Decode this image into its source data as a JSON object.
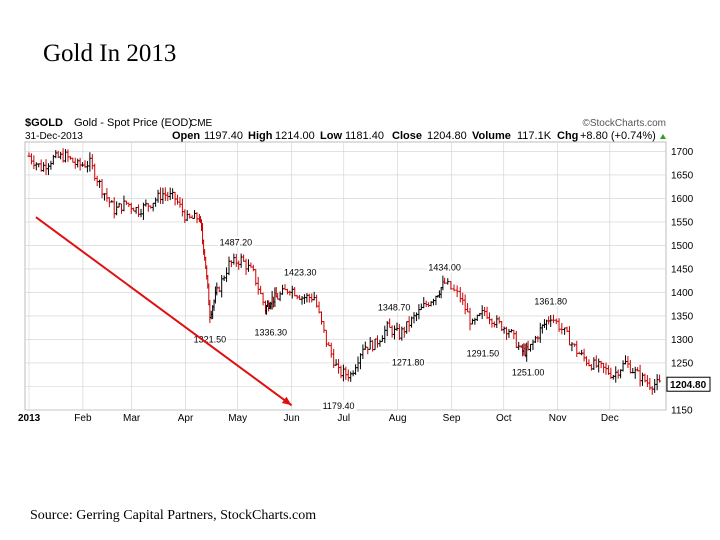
{
  "slide": {
    "title": "Gold In 2013",
    "source": "Source: Gerring Capital Partners, StockCharts.com"
  },
  "chart_header": {
    "symbol": "$GOLD",
    "description": "Gold - Spot Price (EOD)",
    "exchange": "CME",
    "date": "31-Dec-2013",
    "brand": "©StockCharts.com",
    "open_label": "Open",
    "open": "1197.40",
    "high_label": "High",
    "high": "1214.00",
    "low_label": "Low",
    "low": "1181.40",
    "close_label": "Close",
    "close": "1204.80",
    "volume_label": "Volume",
    "volume": "117.1K",
    "chg_label": "Chg",
    "chg": "+8.80 (+0.74%)"
  },
  "colors": {
    "up": "#000000",
    "down": "#cc0000",
    "arrow": "#e01010",
    "grid": "#d0d0d0"
  },
  "chart_data": {
    "type": "line",
    "title": "",
    "xlabel": "",
    "ylabel": "",
    "ylim": [
      1150,
      1720
    ],
    "grid": true,
    "y_ticks": [
      1150,
      1200,
      1250,
      1300,
      1350,
      1400,
      1450,
      1500,
      1550,
      1600,
      1650,
      1700
    ],
    "x_tick_labels": [
      "2013",
      "Feb",
      "Mar",
      "Apr",
      "May",
      "Jun",
      "Jul",
      "Aug",
      "Sep",
      "Oct",
      "Nov",
      "Dec"
    ],
    "last_price_tag": "1204.80",
    "series": [
      {
        "x": [
          "2013-01-01",
          "2013-01-08",
          "2013-01-15",
          "2013-01-22",
          "2013-01-29",
          "2013-02-05",
          "2013-02-12",
          "2013-02-19",
          "2013-02-26",
          "2013-03-05",
          "2013-03-12",
          "2013-03-19",
          "2013-03-26",
          "2013-04-02",
          "2013-04-09",
          "2013-04-12",
          "2013-04-15",
          "2013-04-19",
          "2013-04-26",
          "2013-05-03",
          "2013-05-10",
          "2013-05-17",
          "2013-05-20",
          "2013-05-24",
          "2013-05-31",
          "2013-06-07",
          "2013-06-14",
          "2013-06-21",
          "2013-06-28",
          "2013-07-05",
          "2013-07-12",
          "2013-07-19",
          "2013-07-26",
          "2013-08-02",
          "2013-08-09",
          "2013-08-16",
          "2013-08-23",
          "2013-08-28",
          "2013-09-06",
          "2013-09-13",
          "2013-09-20",
          "2013-09-27",
          "2013-10-04",
          "2013-10-11",
          "2013-10-15",
          "2013-10-22",
          "2013-10-28",
          "2013-11-05",
          "2013-11-12",
          "2013-11-19",
          "2013-11-26",
          "2013-12-03",
          "2013-12-10",
          "2013-12-17",
          "2013-12-24",
          "2013-12-31"
        ],
        "values": [
          1690,
          1665,
          1685,
          1690,
          1670,
          1675,
          1620,
          1575,
          1590,
          1575,
          1590,
          1610,
          1600,
          1555,
          1560,
          1480,
          1355,
          1400,
          1460,
          1470,
          1440,
          1365,
          1385,
          1390,
          1410,
          1390,
          1390,
          1295,
          1230,
          1225,
          1285,
          1290,
          1325,
          1310,
          1340,
          1370,
          1395,
          1420,
          1390,
          1330,
          1360,
          1335,
          1320,
          1275,
          1275,
          1320,
          1350,
          1315,
          1275,
          1250,
          1240,
          1225,
          1250,
          1225,
          1205,
          1204.8
        ]
      }
    ],
    "annotations": [
      {
        "date": "2013-04-15",
        "value": 1321.5,
        "label": "1321.50",
        "pos": "below"
      },
      {
        "date": "2013-04-30",
        "value": 1487.2,
        "label": "1487.20",
        "pos": "above"
      },
      {
        "date": "2013-05-20",
        "value": 1336.3,
        "label": "1336.30",
        "pos": "below"
      },
      {
        "date": "2013-06-06",
        "value": 1423.3,
        "label": "1423.30",
        "pos": "above"
      },
      {
        "date": "2013-06-28",
        "value": 1179.4,
        "label": "1179.40",
        "pos": "below"
      },
      {
        "date": "2013-07-30",
        "value": 1348.7,
        "label": "1348.70",
        "pos": "above"
      },
      {
        "date": "2013-08-07",
        "value": 1271.8,
        "label": "1271.80",
        "pos": "below"
      },
      {
        "date": "2013-08-28",
        "value": 1434.0,
        "label": "1434.00",
        "pos": "above"
      },
      {
        "date": "2013-09-19",
        "value": 1291.5,
        "label": "1291.50",
        "pos": "below"
      },
      {
        "date": "2013-10-15",
        "value": 1251.0,
        "label": "1251.00",
        "pos": "below"
      },
      {
        "date": "2013-10-28",
        "value": 1361.8,
        "label": "1361.80",
        "pos": "above"
      }
    ],
    "trend_arrow": {
      "from": {
        "date": "2013-01-05",
        "value": 1560
      },
      "to": {
        "date": "2013-06-01",
        "value": 1160
      }
    }
  }
}
